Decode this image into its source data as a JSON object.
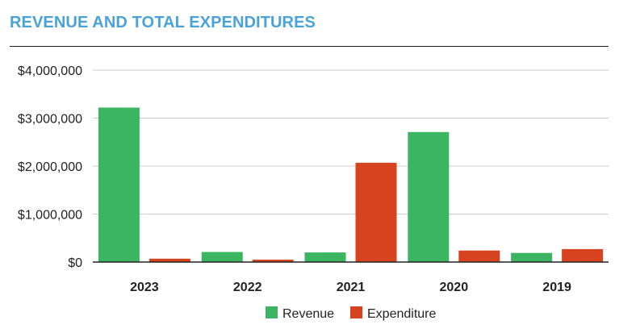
{
  "chart_data": {
    "type": "bar",
    "title": "REVENUE AND TOTAL EXPENDITURES",
    "categories": [
      "2023",
      "2022",
      "2021",
      "2020",
      "2019"
    ],
    "series": [
      {
        "name": "Revenue",
        "color": "#3cb563",
        "values": [
          3220000,
          210000,
          200000,
          2710000,
          190000
        ]
      },
      {
        "name": "Expenditure",
        "color": "#d8431f",
        "values": [
          70000,
          50000,
          2070000,
          240000,
          270000
        ]
      }
    ],
    "ylim": [
      0,
      4000000
    ],
    "yticks": [
      {
        "value": 0,
        "label": "$0"
      },
      {
        "value": 1000000,
        "label": "$1,000,000"
      },
      {
        "value": 2000000,
        "label": "$2,000,000"
      },
      {
        "value": 3000000,
        "label": "$3,000,000"
      },
      {
        "value": 4000000,
        "label": "$4,000,000"
      }
    ],
    "grid": true,
    "legend_position": "bottom"
  }
}
